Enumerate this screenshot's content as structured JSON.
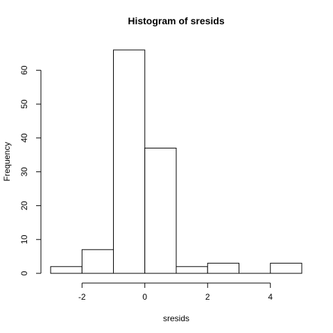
{
  "chart_data": {
    "type": "bar",
    "title": "Histogram of sresids",
    "xlabel": "sresids",
    "ylabel": "Frequency",
    "bins": [
      {
        "start": -3,
        "end": -2,
        "count": 2
      },
      {
        "start": -2,
        "end": -1,
        "count": 7
      },
      {
        "start": -1,
        "end": 0,
        "count": 66
      },
      {
        "start": 0,
        "end": 1,
        "count": 37
      },
      {
        "start": 1,
        "end": 2,
        "count": 2
      },
      {
        "start": 2,
        "end": 3,
        "count": 3
      },
      {
        "start": 3,
        "end": 4,
        "count": 0
      },
      {
        "start": 4,
        "end": 5,
        "count": 3
      }
    ],
    "x_ticks": [
      -2,
      0,
      2,
      4
    ],
    "y_ticks": [
      0,
      10,
      20,
      30,
      40,
      50,
      60
    ],
    "xlim": [
      -3,
      5
    ],
    "ylim": [
      0,
      66
    ],
    "grid": false,
    "colors": {
      "fill": "#ffffff",
      "stroke": "#000000"
    }
  }
}
